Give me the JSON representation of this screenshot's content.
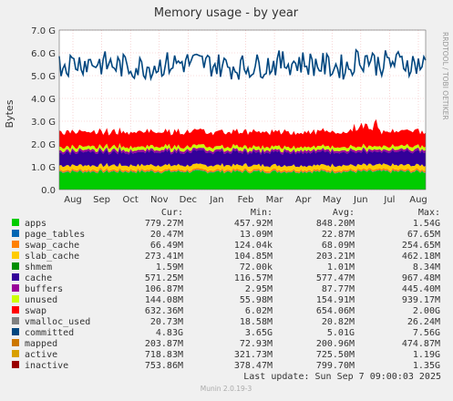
{
  "chart_data": {
    "type": "area",
    "title": "Memory usage - by year",
    "ylabel": "Bytes",
    "side_label": "RRDTOOL / TOBI OETIKER",
    "ylim": [
      0,
      7.0
    ],
    "y_unit": "G",
    "yticks": [
      "0.0",
      "1.0 G",
      "2.0 G",
      "3.0 G",
      "4.0 G",
      "5.0 G",
      "6.0 G",
      "7.0 G"
    ],
    "x_tick_labels": [
      "Aug",
      "Sep",
      "Oct",
      "Nov",
      "Dec",
      "Jan",
      "Feb",
      "Mar",
      "Apr",
      "May",
      "Jun",
      "Jul",
      "Aug"
    ],
    "grid": true,
    "stacked_series": [
      {
        "name": "apps",
        "color": "#00cc00",
        "approx_value": 0.78
      },
      {
        "name": "page_tables",
        "color": "#0066b3",
        "approx_value": 0.02
      },
      {
        "name": "swap_cache",
        "color": "#ff8000",
        "approx_value": 0.07
      },
      {
        "name": "slab_cache",
        "color": "#ffcc00",
        "approx_value": 0.2
      },
      {
        "name": "cache",
        "color": "#330099",
        "approx_value": 0.58
      },
      {
        "name": "buffers",
        "color": "#990099",
        "approx_value": 0.09
      },
      {
        "name": "unused",
        "color": "#ccff00",
        "approx_value": 0.15
      },
      {
        "name": "swap",
        "color": "#ff0000",
        "approx_value": 0.65
      }
    ],
    "line_series": [
      {
        "name": "committed",
        "color": "#00467f",
        "approx_range": [
          4.6,
          6.2
        ]
      }
    ],
    "legend": {
      "headers": [
        "Cur:",
        "Min:",
        "Avg:",
        "Max:"
      ],
      "rows": [
        {
          "name": "apps",
          "color": "#00cc00",
          "cur": "779.27M",
          "min": "457.92M",
          "avg": "848.20M",
          "max": "1.54G"
        },
        {
          "name": "page_tables",
          "color": "#0066b3",
          "cur": "20.47M",
          "min": "13.09M",
          "avg": "22.87M",
          "max": "67.65M"
        },
        {
          "name": "swap_cache",
          "color": "#ff8000",
          "cur": "66.49M",
          "min": "124.04k",
          "avg": "68.09M",
          "max": "254.65M"
        },
        {
          "name": "slab_cache",
          "color": "#ffcc00",
          "cur": "273.41M",
          "min": "104.85M",
          "avg": "203.21M",
          "max": "462.18M"
        },
        {
          "name": "shmem",
          "color": "#008f00",
          "cur": "1.59M",
          "min": "72.00k",
          "avg": "1.01M",
          "max": "8.34M"
        },
        {
          "name": "cache",
          "color": "#330099",
          "cur": "571.25M",
          "min": "116.57M",
          "avg": "577.47M",
          "max": "967.48M"
        },
        {
          "name": "buffers",
          "color": "#990099",
          "cur": "106.87M",
          "min": "2.95M",
          "avg": "87.77M",
          "max": "445.40M"
        },
        {
          "name": "unused",
          "color": "#ccff00",
          "cur": "144.08M",
          "min": "55.98M",
          "avg": "154.91M",
          "max": "939.17M"
        },
        {
          "name": "swap",
          "color": "#ff0000",
          "cur": "632.36M",
          "min": "6.02M",
          "avg": "654.06M",
          "max": "2.00G"
        },
        {
          "name": "vmalloc_used",
          "color": "#808080",
          "cur": "20.73M",
          "min": "18.58M",
          "avg": "20.82M",
          "max": "26.24M"
        },
        {
          "name": "committed",
          "color": "#00467f",
          "cur": "4.83G",
          "min": "3.65G",
          "avg": "5.01G",
          "max": "7.56G"
        },
        {
          "name": "mapped",
          "color": "#cc7700",
          "cur": "203.87M",
          "min": "72.93M",
          "avg": "200.96M",
          "max": "474.87M"
        },
        {
          "name": "active",
          "color": "#d8a000",
          "cur": "718.83M",
          "min": "321.73M",
          "avg": "725.50M",
          "max": "1.19G"
        },
        {
          "name": "inactive",
          "color": "#990000",
          "cur": "753.86M",
          "min": "378.47M",
          "avg": "799.70M",
          "max": "1.35G"
        }
      ]
    }
  },
  "footer": {
    "last_update": "Last update:  Sun Sep  7 09:00:03 2025",
    "credit": "Munin 2.0.19-3"
  }
}
